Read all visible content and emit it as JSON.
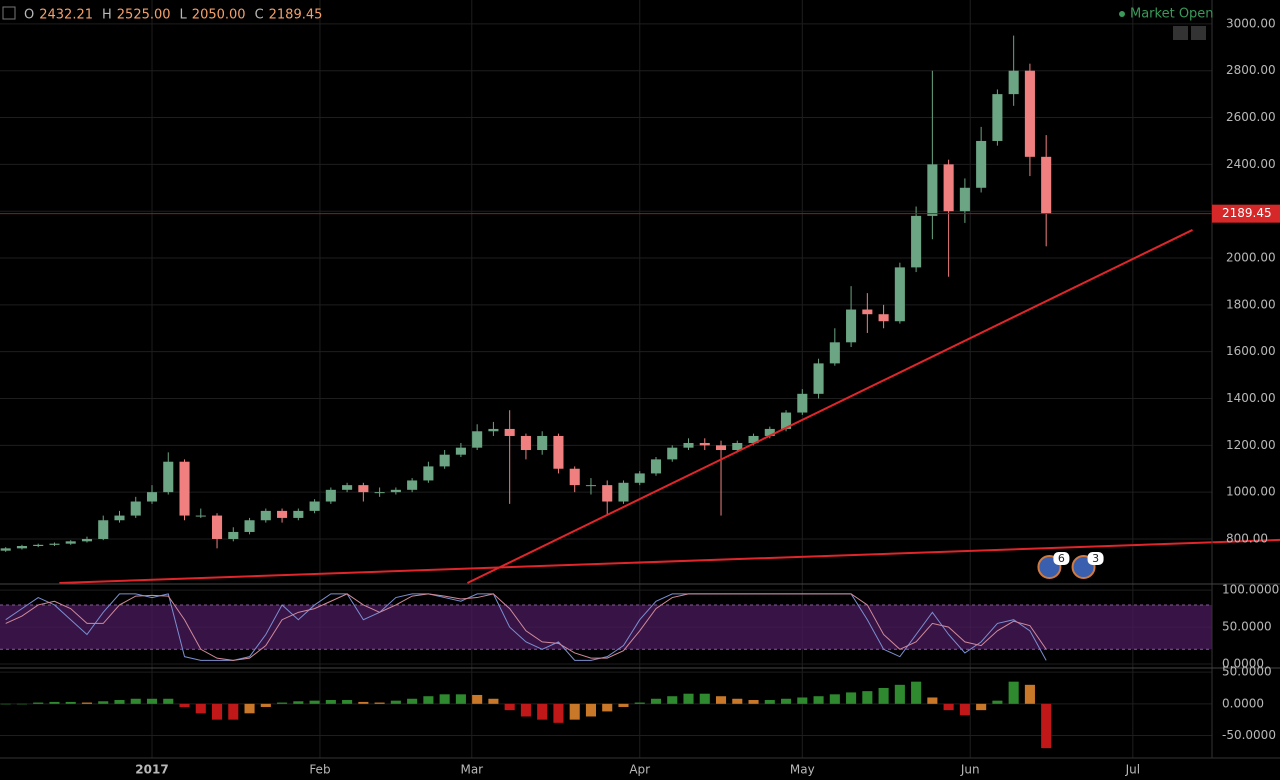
{
  "status": "Market Open",
  "header": [
    {
      "label": "O",
      "value": "2432.21"
    },
    {
      "label": "H",
      "value": "2525.00"
    },
    {
      "label": "L",
      "value": "2050.00"
    },
    {
      "label": "C",
      "value": "2189.45"
    }
  ],
  "chart_data": {
    "type": "candlestick",
    "up_color": "#6ba583",
    "down_color": "#f08080",
    "open": [
      750,
      760,
      770,
      775,
      780,
      790,
      800,
      880,
      900,
      960,
      1000,
      1130,
      900,
      900,
      800,
      830,
      880,
      920,
      890,
      920,
      960,
      1010,
      1030,
      1000,
      1000,
      1010,
      1050,
      1110,
      1160,
      1190,
      1260,
      1270,
      1240,
      1180,
      1240,
      1100,
      1030,
      1030,
      960,
      1040,
      1080,
      1140,
      1190,
      1210,
      1200,
      1180,
      1210,
      1240,
      1270,
      1340,
      1420,
      1550,
      1640,
      1780,
      1760,
      1730,
      1960,
      2180,
      2400,
      2200,
      2300,
      2500,
      2700,
      2800,
      2432.21
    ],
    "high": [
      765,
      775,
      780,
      785,
      795,
      810,
      900,
      920,
      980,
      1030,
      1170,
      1140,
      930,
      910,
      850,
      890,
      930,
      930,
      930,
      970,
      1020,
      1040,
      1040,
      1020,
      1020,
      1060,
      1130,
      1180,
      1210,
      1290,
      1300,
      1350,
      1250,
      1260,
      1250,
      1110,
      1060,
      1050,
      1050,
      1090,
      1150,
      1200,
      1230,
      1230,
      1220,
      1220,
      1250,
      1280,
      1350,
      1440,
      1570,
      1700,
      1880,
      1850,
      1800,
      1980,
      2220,
      2800,
      2420,
      2340,
      2560,
      2720,
      2950,
      2830,
      2525
    ],
    "low": [
      745,
      755,
      765,
      770,
      775,
      785,
      795,
      870,
      890,
      950,
      990,
      880,
      890,
      760,
      790,
      820,
      870,
      870,
      880,
      910,
      950,
      1000,
      960,
      980,
      990,
      1000,
      1040,
      1100,
      1150,
      1180,
      1240,
      950,
      1140,
      1160,
      1080,
      1000,
      990,
      900,
      950,
      1030,
      1070,
      1130,
      1180,
      1180,
      900,
      1170,
      1200,
      1230,
      1260,
      1330,
      1400,
      1540,
      1620,
      1680,
      1700,
      1720,
      1940,
      2080,
      1920,
      2150,
      2280,
      2480,
      2650,
      2350,
      2050
    ],
    "close": [
      760,
      770,
      775,
      780,
      790,
      800,
      880,
      900,
      960,
      1000,
      1130,
      900,
      900,
      800,
      830,
      880,
      920,
      890,
      920,
      960,
      1010,
      1030,
      1000,
      1000,
      1010,
      1050,
      1110,
      1160,
      1190,
      1260,
      1270,
      1240,
      1180,
      1240,
      1100,
      1030,
      1030,
      960,
      1040,
      1080,
      1140,
      1190,
      1210,
      1200,
      1180,
      1210,
      1240,
      1270,
      1340,
      1420,
      1550,
      1640,
      1780,
      1760,
      1730,
      1960,
      2180,
      2400,
      2200,
      2300,
      2500,
      2700,
      2800,
      2432.21,
      2189.45
    ],
    "xlim": [
      -0.35,
      74.2
    ],
    "xticks": [
      {
        "value": 9,
        "label": "2017"
      },
      {
        "value": 19.33,
        "label": "Feb"
      },
      {
        "value": 28.67,
        "label": "Mar"
      },
      {
        "value": 39,
        "label": "Apr"
      },
      {
        "value": 49,
        "label": "May"
      },
      {
        "value": 59.33,
        "label": "Jun"
      },
      {
        "value": 69.33,
        "label": "Jul"
      }
    ],
    "ylim": [
      612,
      3102
    ],
    "yticks": [
      {
        "value": 800,
        "label": "800.00"
      },
      {
        "value": 1000,
        "label": "1000.00"
      },
      {
        "value": 1200,
        "label": "1200.00"
      },
      {
        "value": 1400,
        "label": "1400.00"
      },
      {
        "value": 1600,
        "label": "1600.00"
      },
      {
        "value": 1800,
        "label": "1800.00"
      },
      {
        "value": 2000,
        "label": "2000.00"
      },
      {
        "value": 2200,
        "label": "2200.00"
      },
      {
        "value": 2400,
        "label": "2400.00"
      },
      {
        "value": 2600,
        "label": "2600.00"
      },
      {
        "value": 2800,
        "label": "2800.00"
      },
      {
        "value": 3000,
        "label": "3000.00"
      }
    ],
    "trendlines": [
      {
        "color": "#e0262a",
        "x": [
          28.4,
          73
        ],
        "y": [
          612,
          2120
        ]
      },
      {
        "color": "#e0262a",
        "x": [
          3.3,
          78.4
        ],
        "y": [
          612,
          796
        ]
      }
    ],
    "events": [
      {
        "label": "6",
        "x": 64.2
      },
      {
        "label": "3",
        "x": 66.3
      }
    ],
    "stoch": {
      "ylim": [
        -4,
        107
      ],
      "band": [
        20,
        80
      ],
      "band_color": "#4a1a5e",
      "yticks": [
        {
          "value": 100,
          "label": "100.0000"
        },
        {
          "value": 50,
          "label": "50.0000"
        },
        {
          "value": 0,
          "label": "0.0000"
        }
      ],
      "series": [
        {
          "color": "#7a8fd0",
          "values": [
            60,
            75,
            90,
            80,
            60,
            40,
            70,
            95,
            95,
            90,
            95,
            10,
            5,
            5,
            5,
            10,
            40,
            80,
            60,
            80,
            95,
            95,
            60,
            70,
            90,
            95,
            95,
            90,
            85,
            95,
            95,
            50,
            30,
            20,
            30,
            5,
            5,
            10,
            25,
            60,
            85,
            95,
            95,
            95,
            95,
            95,
            95,
            95,
            95,
            95,
            95,
            95,
            95,
            60,
            20,
            10,
            40,
            70,
            40,
            15,
            30,
            55,
            60,
            45,
            5
          ]
        },
        {
          "color": "#d08a9a",
          "values": [
            55,
            65,
            80,
            85,
            75,
            55,
            55,
            80,
            92,
            93,
            92,
            60,
            20,
            8,
            5,
            8,
            25,
            60,
            70,
            75,
            85,
            95,
            80,
            70,
            80,
            92,
            95,
            92,
            88,
            90,
            95,
            75,
            45,
            30,
            28,
            15,
            8,
            8,
            18,
            45,
            75,
            90,
            95,
            95,
            95,
            95,
            95,
            95,
            95,
            95,
            95,
            95,
            95,
            80,
            40,
            20,
            30,
            55,
            50,
            30,
            25,
            45,
            58,
            52,
            20
          ]
        }
      ]
    },
    "macd": {
      "ylim": [
        -84,
        55
      ],
      "yticks": [
        {
          "value": 50,
          "label": "50.0000"
        },
        {
          "value": 0,
          "label": "0.0000"
        },
        {
          "value": -50,
          "label": "-50.0000"
        }
      ],
      "colors": [
        "#2f8a2f",
        "#c9782a",
        "#c01818",
        "#c9782a"
      ],
      "values": [
        0,
        0,
        2,
        3,
        3,
        2,
        4,
        6,
        8,
        8,
        8,
        -5,
        -15,
        -25,
        -25,
        -15,
        -5,
        2,
        4,
        5,
        6,
        6,
        3,
        2,
        5,
        8,
        12,
        15,
        15,
        14,
        8,
        -10,
        -20,
        -25,
        -30,
        -25,
        -20,
        -12,
        -5,
        2,
        8,
        12,
        16,
        16,
        12,
        8,
        6,
        6,
        8,
        10,
        12,
        15,
        18,
        20,
        25,
        30,
        35,
        10,
        -10,
        -18,
        -10,
        5,
        35,
        30,
        -70
      ]
    }
  }
}
